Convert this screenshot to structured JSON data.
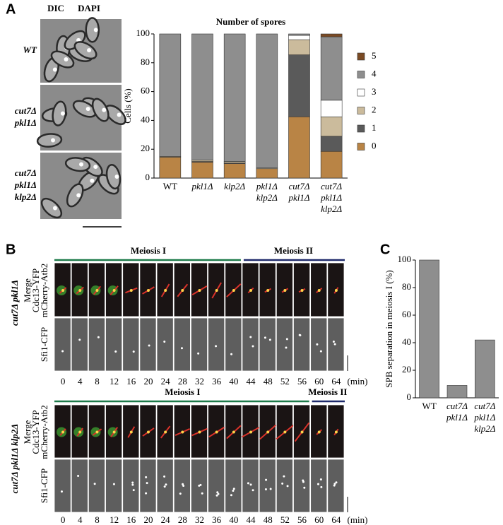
{
  "panels": {
    "a": "A",
    "b": "B",
    "c": "C"
  },
  "panel_a": {
    "columns": [
      "DIC",
      "DAPI"
    ],
    "rows": [
      [
        "WT"
      ],
      [
        "cut7Δ",
        "pkl1Δ"
      ],
      [
        "cut7Δ",
        "pkl1Δ",
        "klp2Δ"
      ]
    ]
  },
  "chart_data": [
    {
      "type": "bar",
      "stacked": true,
      "title": "Number of spores",
      "ylabel": "Cells (%)",
      "categories": [
        [
          "WT"
        ],
        [
          "pkl1Δ"
        ],
        [
          "klp2Δ"
        ],
        [
          "pkl1Δ",
          "klp2Δ"
        ],
        [
          "cut7Δ",
          "pkl1Δ"
        ],
        [
          "cut7Δ",
          "pkl1Δ",
          "klp2Δ"
        ]
      ],
      "series": [
        {
          "name": "0",
          "color": "#b98445",
          "values": [
            14.5,
            11,
            10,
            6.5,
            42.5,
            18.5
          ]
        },
        {
          "name": "1",
          "color": "#5a5a5a",
          "values": [
            0,
            0.5,
            0.5,
            0,
            43,
            10.5
          ]
        },
        {
          "name": "2",
          "color": "#cbbb9c",
          "values": [
            0.5,
            1,
            1,
            0.5,
            10.5,
            13.5
          ]
        },
        {
          "name": "3",
          "color": "#ffffff",
          "values": [
            0,
            0,
            0,
            0,
            3,
            11.5
          ]
        },
        {
          "name": "4",
          "color": "#8e8e8e",
          "values": [
            85,
            87.5,
            88.5,
            93,
            1,
            44
          ]
        },
        {
          "name": "5",
          "color": "#7a4a24",
          "values": [
            0,
            0,
            0,
            0,
            0,
            2
          ]
        }
      ],
      "ylim": [
        0,
        100
      ],
      "yticks": [
        0,
        20,
        40,
        60,
        80,
        100
      ]
    },
    {
      "type": "bar",
      "ylabel": "SPB separation in meiosis I (%)",
      "categories": [
        [
          "WT"
        ],
        [
          "cut7Δ",
          "pkl1Δ"
        ],
        [
          "cut7Δ",
          "pkl1Δ",
          "klp2Δ"
        ]
      ],
      "values": [
        100,
        9,
        42
      ],
      "color": "#8e8e8e",
      "ylim": [
        0,
        100
      ],
      "yticks": [
        0,
        20,
        40,
        60,
        80,
        100
      ]
    }
  ],
  "panel_b": {
    "merge_channels": [
      "Merge",
      "Cdc13-YFP",
      "mCherry-Atb2"
    ],
    "cfp_channel": "Sfi1-CFP",
    "time_unit": "(min)",
    "strips": [
      {
        "strain": "cut7Δ pkl1Δ",
        "phases": [
          "Meiosis I",
          "Meiosis II"
        ],
        "timepoints": [
          0,
          4,
          8,
          12,
          16,
          20,
          24,
          28,
          32,
          36,
          40,
          44,
          48,
          52,
          56,
          60,
          64
        ]
      },
      {
        "strain": "cut7Δ pkl1Δ klp2Δ",
        "phases": [
          "Meiosis I",
          "Meiosis II"
        ],
        "timepoints": [
          0,
          4,
          8,
          12,
          16,
          20,
          24,
          28,
          32,
          36,
          40,
          44,
          48,
          52,
          56,
          60,
          64
        ]
      }
    ]
  }
}
